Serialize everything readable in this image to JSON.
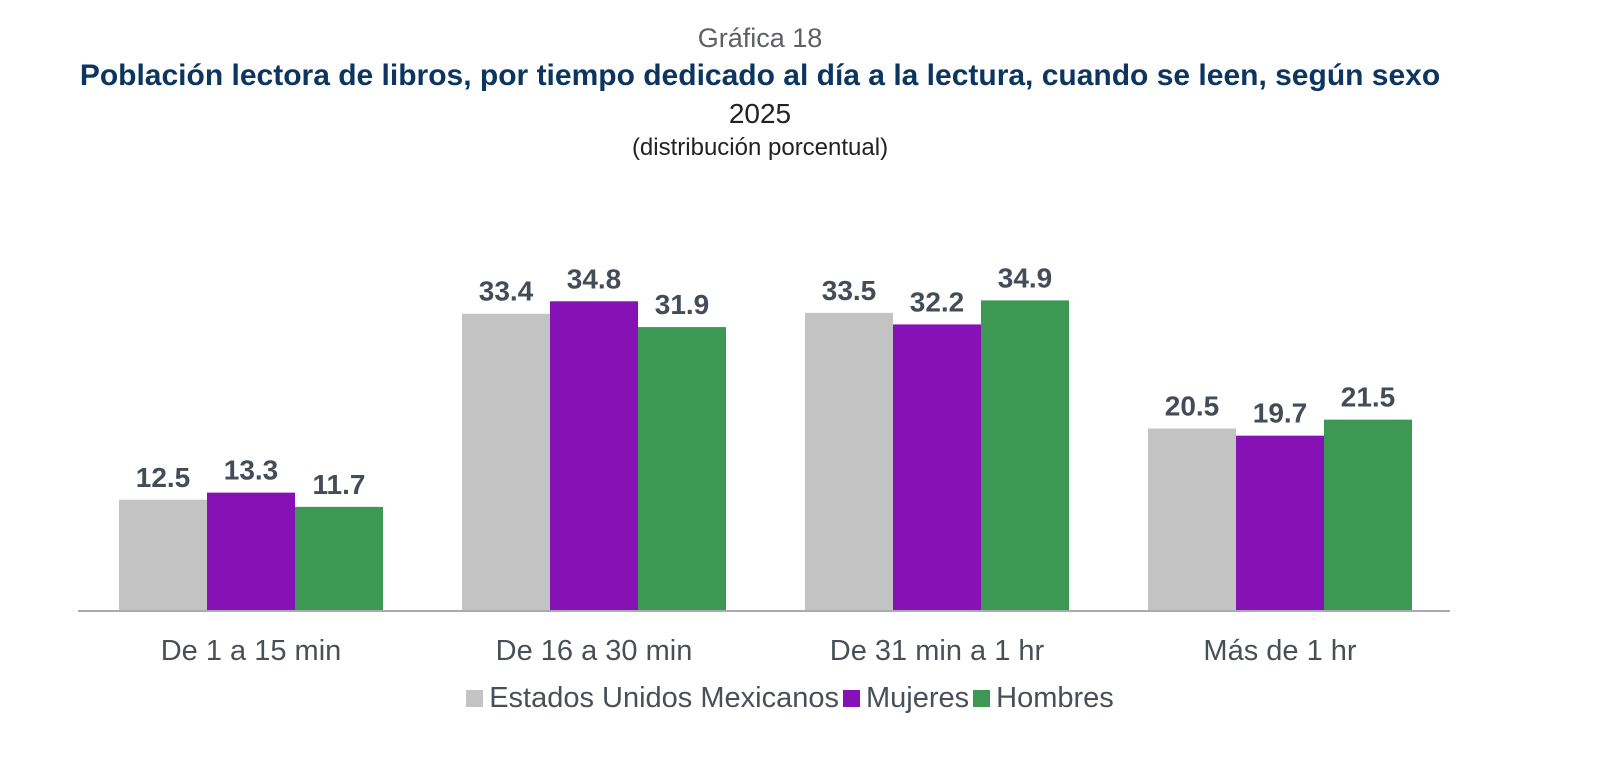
{
  "header": {
    "label": "Gráfica 18",
    "title": "Población lectora de libros, por tiempo dedicado al día a la lectura, cuando se leen, según sexo",
    "subtitle": "2025",
    "unit": "(distribución porcentual)"
  },
  "chart_data": {
    "type": "bar",
    "categories": [
      "De 1 a 15 min",
      "De 16 a 30 min",
      "De 31 min a 1 hr",
      "Más de 1 hr"
    ],
    "series": [
      {
        "name": "Estados Unidos Mexicanos",
        "color": "#c3c3c3",
        "values": [
          12.5,
          33.4,
          33.5,
          20.5
        ]
      },
      {
        "name": "Mujeres",
        "color": "#8611b5",
        "values": [
          13.3,
          34.8,
          32.2,
          19.7
        ]
      },
      {
        "name": "Hombres",
        "color": "#3d9853",
        "values": [
          11.7,
          31.9,
          34.9,
          21.5
        ]
      }
    ],
    "ylim": [
      0,
      40
    ],
    "grid": false,
    "legend_position": "bottom",
    "data_labels": true
  }
}
